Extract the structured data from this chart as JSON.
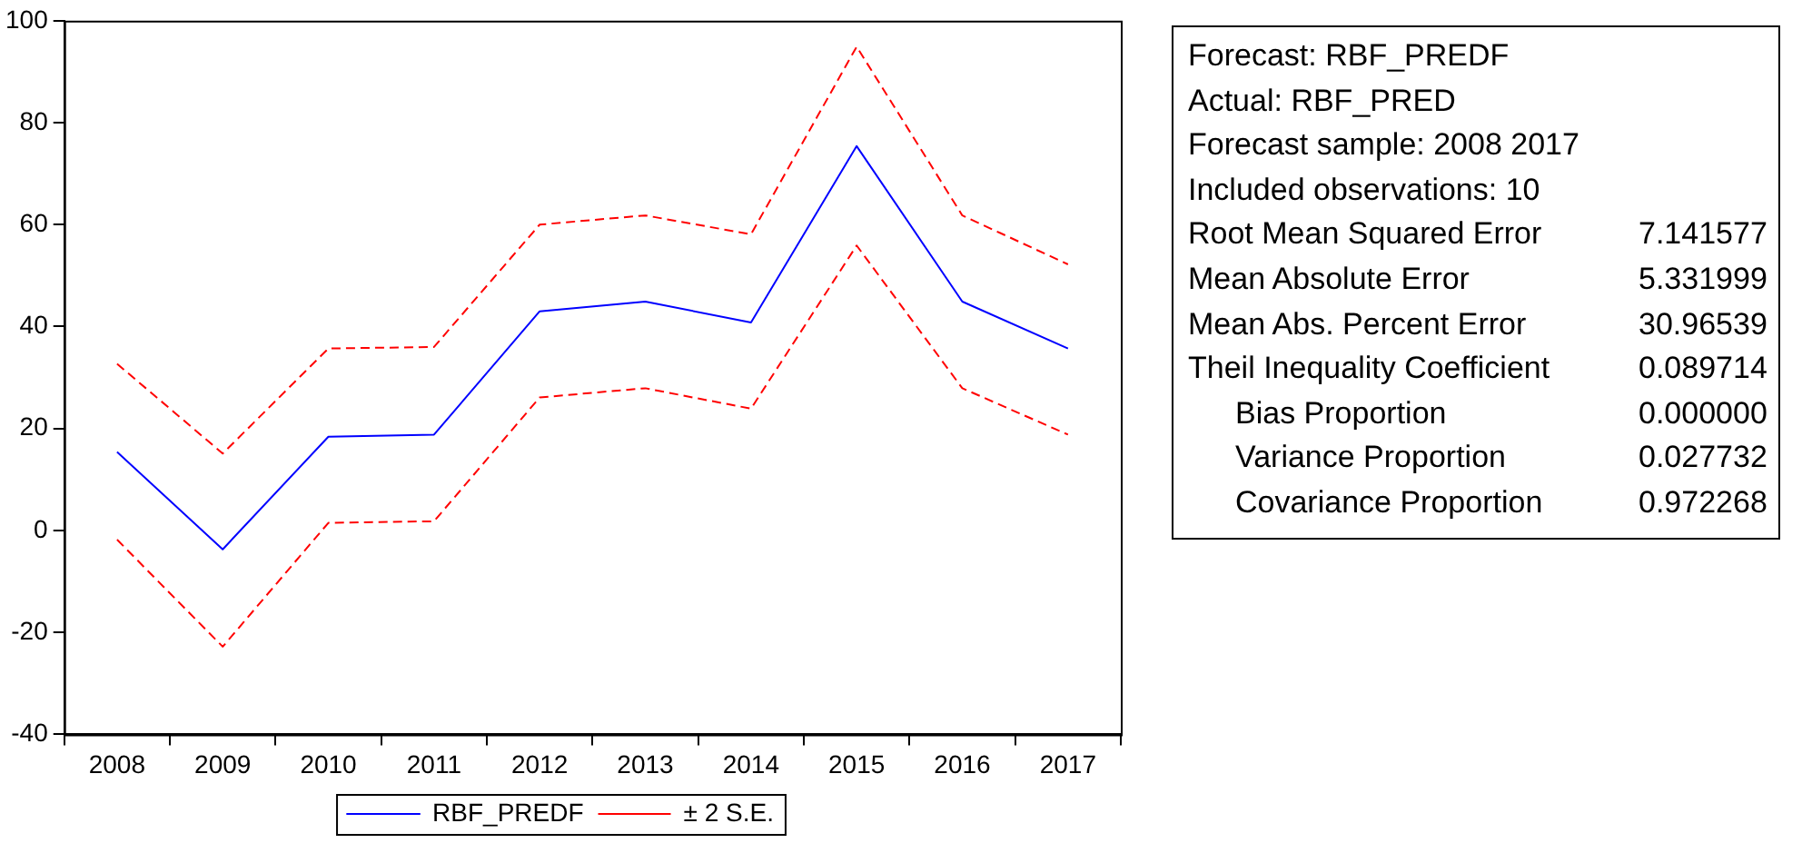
{
  "chart_data": [
    {
      "type": "line",
      "categories": [
        "2008",
        "2009",
        "2010",
        "2011",
        "2012",
        "2013",
        "2014",
        "2015",
        "2016",
        "2017"
      ],
      "series": [
        {
          "name": "RBF_PREDF",
          "color": "#0000ff",
          "line_style": "solid",
          "values": [
            15.4,
            -3.7,
            18.4,
            18.8,
            43,
            44.9,
            40.8,
            75.4,
            44.9,
            35.7
          ]
        },
        {
          "name": "± 2 S.E.",
          "color": "#ff0000",
          "line_style": "dashed",
          "values": [
            32.7,
            15.1,
            35.7,
            36,
            60,
            61.8,
            58.1,
            94.9,
            61.8,
            52.2
          ]
        },
        {
          "color": "#ff0000",
          "line_style": "dashed",
          "values": [
            -1.8,
            -22.8,
            1.5,
            1.8,
            26.1,
            27.9,
            23.9,
            55.9,
            27.9,
            18.8
          ]
        }
      ],
      "ylim": [
        -40,
        100
      ],
      "yticks": [
        -40,
        -20,
        0,
        20,
        40,
        60,
        80,
        100
      ],
      "grid": false,
      "legend": "bottom",
      "marker": "none"
    },
    {
      "type": "other",
      "categories": [
        "Forecast: RBF_PREDF",
        "Actual: RBF_PRED",
        "Forecast sample: 2008 2017",
        "Included observations: 10",
        "Root Mean Squared Error",
        "Mean Absolute Error",
        "Mean Abs. Percent Error",
        "Theil Inequality Coefficient",
        "Bias Proportion",
        "Variance Proportion",
        "Covariance Proportion"
      ],
      "value_labels": [
        null,
        null,
        null,
        null,
        "7.141577",
        "5.331999",
        "30.96539",
        "0.089714",
        "0.000000",
        "0.027732",
        "0.972268"
      ]
    }
  ]
}
